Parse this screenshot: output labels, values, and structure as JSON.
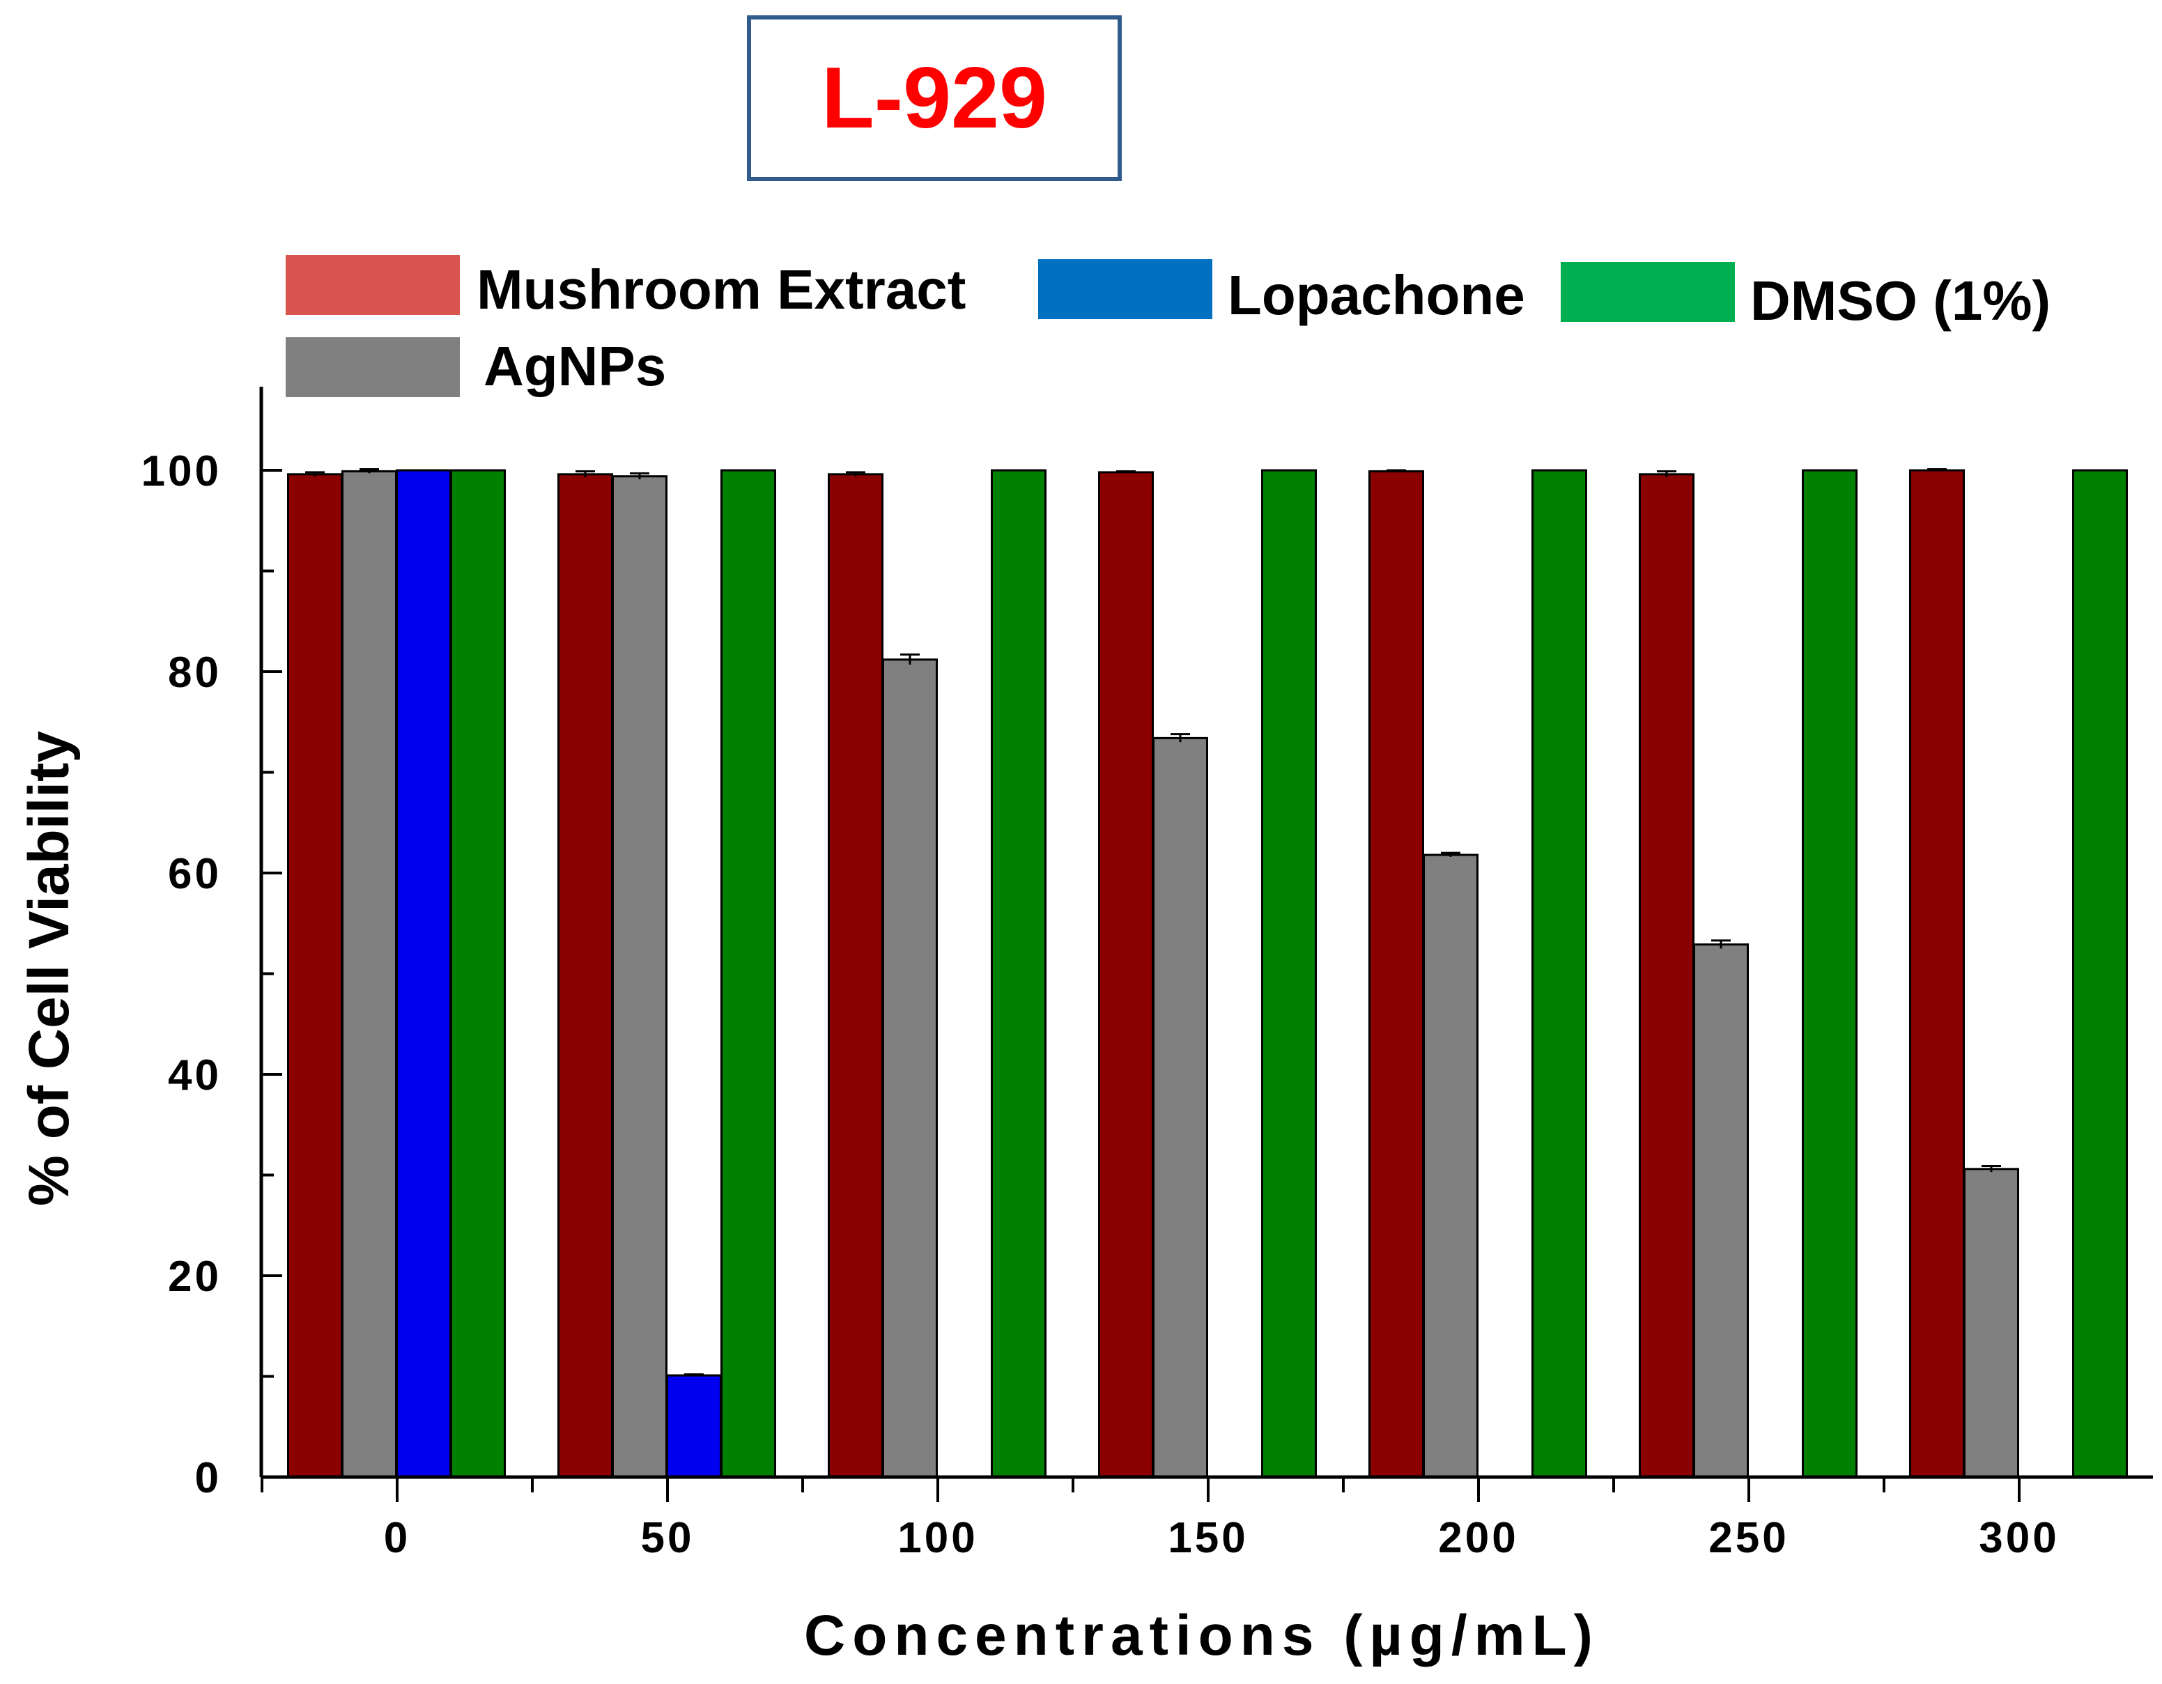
{
  "chart_data": {
    "type": "bar",
    "title": "L-929",
    "xlabel": "Concentrations (µg/mL)",
    "ylabel": "% of Cell Viability",
    "categories": [
      "0",
      "50",
      "100",
      "150",
      "200",
      "250",
      "300"
    ],
    "ylim": [
      0,
      108
    ],
    "yticks": [
      "0",
      "20",
      "40",
      "60",
      "80",
      "100"
    ],
    "yticks_values": [
      0,
      20,
      40,
      60,
      80,
      100
    ],
    "legend_position": "top",
    "series": [
      {
        "name": "Mushroom Extract",
        "legend_color": "#d9534f",
        "color": "#8b0000",
        "values": [
          99.6,
          99.6,
          99.6,
          99.8,
          99.9,
          99.6,
          100
        ],
        "errors": [
          0.2,
          0.3,
          0.2,
          0.1,
          0.1,
          0.3,
          0.1
        ]
      },
      {
        "name": "AgNPs",
        "legend_color": "#808080",
        "color": "#808080",
        "values": [
          99.9,
          99.4,
          81.2,
          73.4,
          61.8,
          52.9,
          30.6
        ],
        "errors": [
          0.2,
          0.3,
          0.5,
          0.4,
          0.2,
          0.4,
          0.3
        ]
      },
      {
        "name": "Lopachone",
        "legend_color": "#0070c0",
        "color": "#0000ee",
        "values": [
          100,
          10.1,
          null,
          null,
          null,
          null,
          null
        ],
        "errors": [
          0,
          0.1,
          null,
          null,
          null,
          null,
          null
        ]
      },
      {
        "name": "DMSO (1%)",
        "legend_color": "#00b050",
        "color": "#008000",
        "values": [
          100,
          100,
          100,
          100,
          100,
          100,
          100
        ],
        "errors": [
          0,
          0,
          0,
          0,
          0,
          0,
          0
        ]
      }
    ]
  }
}
